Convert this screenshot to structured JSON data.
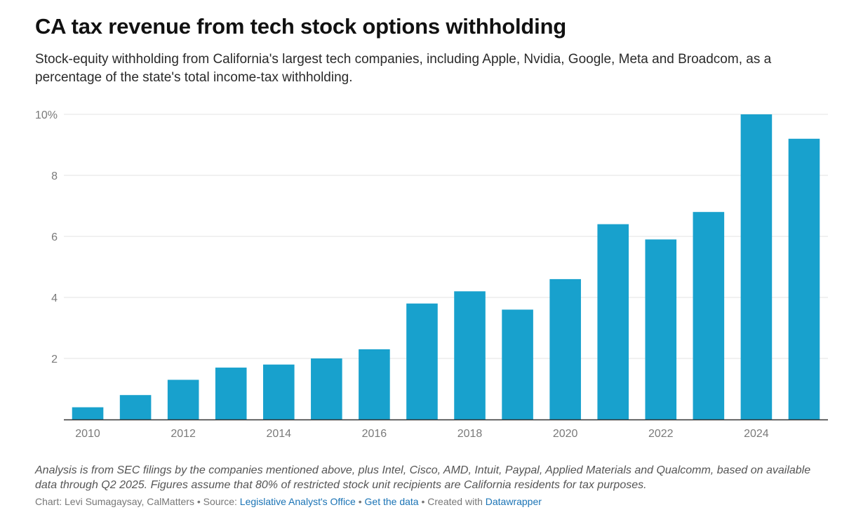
{
  "title": "CA tax revenue from tech stock options withholding",
  "subtitle": "Stock-equity withholding from California's largest tech companies, including Apple, Nvidia, Google, Meta and Broadcom, as a percentage of the state's total income-tax withholding.",
  "notes": "Analysis is from SEC filings by the companies mentioned above, plus Intel, Cisco, AMD, Intuit, Paypal, Applied Materials and Qualcomm, based on available data through Q2 2025. Figures assume that 80% of restricted stock unit recipients are California residents for tax purposes.",
  "credits": {
    "chart_by": "Chart: Levi Sumagaysay, CalMatters",
    "sep": " • ",
    "source_prefix": "Source: ",
    "source_link": "Legislative Analyst's Office",
    "get_data": "Get the data",
    "created_prefix": "Created with ",
    "created_link": "Datawrapper"
  },
  "colors": {
    "bar": "#18a1cd",
    "grid": "#e3e3e3",
    "axis": "#333333"
  },
  "chart_data": {
    "type": "bar",
    "categories": [
      "2010",
      "2011",
      "2012",
      "2013",
      "2014",
      "2015",
      "2016",
      "2017",
      "2018",
      "2019",
      "2020",
      "2021",
      "2022",
      "2023",
      "2024",
      "2025"
    ],
    "values": [
      0.4,
      0.8,
      1.3,
      1.7,
      1.8,
      2.0,
      2.3,
      3.8,
      4.2,
      3.6,
      4.6,
      6.4,
      5.9,
      6.8,
      10.0,
      9.2
    ],
    "x_tick_labels": [
      "2010",
      "2012",
      "2014",
      "2016",
      "2018",
      "2020",
      "2022",
      "2024"
    ],
    "y_ticks": [
      2,
      4,
      6,
      8,
      10
    ],
    "y_tick_labels": [
      "2",
      "4",
      "6",
      "8",
      "10%"
    ],
    "ylim": [
      0,
      10
    ],
    "ylabel": "",
    "xlabel": "",
    "grid": true
  }
}
